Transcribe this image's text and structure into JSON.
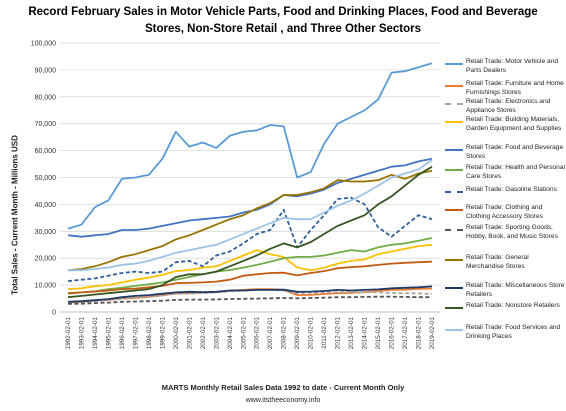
{
  "title_line1": "Record February Sales in Motor Vehicle Parts, Food and Drinking Places, Food and Beverage",
  "title_line2": "Stores, Non-Store Retail , and Three Other Sectors",
  "footer_line1": "MARTS Monthly Retail Sales Data 1992 to date - Current Month Only",
  "footer_line2": "www.itstheeconomy.info",
  "chart_data": {
    "type": "line",
    "ylabel": "Total Sales - Current Month - Millions USD",
    "xlabel": "",
    "ylim": [
      0,
      100000
    ],
    "y_ticks": [
      "0",
      "10,000",
      "20,000",
      "30,000",
      "40,000",
      "50,000",
      "60,000",
      "70,000",
      "80,000",
      "90,000",
      "100,000"
    ],
    "grid": "horizontal",
    "legend_position": "right",
    "categories": [
      "1992-02-01",
      "1993-02-01",
      "1994-02-01",
      "1995-02-01",
      "1996-02-01",
      "1997-02-01",
      "1998-02-01",
      "1999-02-01",
      "2000-02-01",
      "2001-02-01",
      "2002-02-01",
      "2003-02-01",
      "2004-02-01",
      "2005-02-01",
      "2006-02-01",
      "2007-02-01",
      "2008-02-01",
      "2009-02-01",
      "2010-02-01",
      "2011-02-01",
      "2012-02-01",
      "2013-02-01",
      "2014-02-01",
      "2015-02-01",
      "2016-02-01",
      "2017-02-01",
      "2018-02-01",
      "2019-02-01"
    ],
    "series": [
      {
        "name": "Retail Trade: Motor Vehicle and Parts Dealers",
        "color": "#5B9BD5",
        "dash": "solid",
        "values": [
          31000,
          32500,
          39000,
          41500,
          49500,
          50000,
          51000,
          57000,
          67000,
          61500,
          63000,
          61000,
          65500,
          67000,
          67500,
          69500,
          69000,
          50000,
          52000,
          62500,
          70000,
          72500,
          75000,
          79000,
          89000,
          89500,
          91000,
          92500
        ]
      },
      {
        "name": "Retail Trade: Furniture and Home Furnishings Stores",
        "color": "#ED7D31",
        "dash": "solid",
        "values": [
          3500,
          3800,
          4200,
          4500,
          5000,
          5200,
          5600,
          6200,
          6900,
          7000,
          7200,
          7400,
          7900,
          8200,
          8500,
          8500,
          8200,
          6300,
          6400,
          6700,
          7000,
          7100,
          7400,
          7800,
          8200,
          8300,
          8600,
          8700
        ]
      },
      {
        "name": "Retail Trade: Electronics and Appliance Stores",
        "color": "#A5A5A5",
        "dash": "dash",
        "values": [
          3500,
          3700,
          4000,
          4500,
          5000,
          5300,
          5700,
          6200,
          6800,
          6800,
          7000,
          7300,
          7700,
          8000,
          8300,
          8200,
          8000,
          7000,
          7200,
          7300,
          7400,
          7400,
          7400,
          7300,
          7100,
          7000,
          6900,
          6700
        ]
      },
      {
        "name": "Retail Trade: Building Materials, Garden Equipment and Supplies",
        "color": "#FFC000",
        "dash": "solid",
        "values": [
          8500,
          8800,
          9600,
          10000,
          11000,
          12000,
          12800,
          13800,
          15200,
          15600,
          16500,
          17000,
          19000,
          21000,
          23000,
          21500,
          20500,
          16500,
          15500,
          16500,
          18000,
          19000,
          19500,
          21500,
          22500,
          23500,
          24500,
          25000
        ]
      },
      {
        "name": "Retail Trade: Food and Beverage Stores",
        "color": "#4472C4",
        "dash": "solid",
        "values": [
          28500,
          28000,
          28500,
          29000,
          30500,
          30500,
          31000,
          32000,
          33000,
          34000,
          34500,
          35000,
          35500,
          37000,
          38000,
          40000,
          43500,
          43000,
          44000,
          45500,
          48000,
          49500,
          51000,
          52500,
          54000,
          54500,
          56000,
          57000
        ]
      },
      {
        "name": "Retail Trade: Health and Personal Care Stores",
        "color": "#70AD47",
        "dash": "solid",
        "values": [
          6800,
          7300,
          7700,
          8500,
          9000,
          9700,
          10300,
          11000,
          12000,
          13000,
          14000,
          15000,
          15600,
          16500,
          17500,
          18700,
          20000,
          20500,
          20500,
          21000,
          22000,
          23000,
          22500,
          24000,
          25000,
          25500,
          26500,
          27500
        ]
      },
      {
        "name": "Retail Trade: Gasoline Stations",
        "color": "#2E5E9A",
        "dash": "dash",
        "values": [
          11500,
          12000,
          12500,
          13500,
          14500,
          15000,
          14500,
          15000,
          18500,
          19000,
          17000,
          21000,
          22500,
          25500,
          29000,
          30500,
          38000,
          24000,
          30500,
          36000,
          42000,
          42500,
          40000,
          31500,
          28000,
          32000,
          36000,
          34500
        ]
      },
      {
        "name": "Retail Trade: Clothing and Clothing Accessory Stores",
        "color": "#C55A11",
        "dash": "solid",
        "values": [
          7000,
          7300,
          7600,
          8000,
          8500,
          8700,
          9200,
          9700,
          10700,
          10800,
          11000,
          11300,
          12000,
          13500,
          14000,
          14500,
          14600,
          13600,
          14500,
          15200,
          16300,
          16700,
          17000,
          17500,
          18000,
          18300,
          18500,
          18700
        ]
      },
      {
        "name": "Retail Trade: Sporting Goods, Hobby, Book, and Music Stores",
        "color": "#555555",
        "dash": "dash",
        "values": [
          3000,
          3100,
          3300,
          3500,
          3800,
          3900,
          4000,
          4200,
          4500,
          4600,
          4600,
          4700,
          4800,
          4900,
          5000,
          5100,
          5200,
          5100,
          5200,
          5300,
          5500,
          5500,
          5600,
          5700,
          5700,
          5600,
          5500,
          5500
        ]
      },
      {
        "name": "Retail Trade: General Merchandise Stores",
        "color": "#997300",
        "dash": "solid",
        "values": [
          15500,
          16000,
          17000,
          18500,
          20500,
          21500,
          23000,
          24500,
          27000,
          28500,
          30500,
          32500,
          34500,
          36000,
          38500,
          40500,
          43500,
          43500,
          44500,
          46000,
          49000,
          48500,
          48500,
          49000,
          51000,
          49500,
          51500,
          52500
        ]
      },
      {
        "name": "Retail Trade: Miscellaneous Store Retailers",
        "color": "#1F3864",
        "dash": "solid",
        "values": [
          3800,
          4000,
          4400,
          4800,
          5500,
          6000,
          6300,
          6800,
          7300,
          7500,
          7400,
          7500,
          8000,
          8000,
          8200,
          8200,
          8300,
          7500,
          7600,
          7800,
          8200,
          8000,
          8200,
          8400,
          8800,
          9000,
          9200,
          9500
        ]
      },
      {
        "name": "Retail Trade: Nonstore Retailers",
        "color": "#375623",
        "dash": "solid",
        "values": [
          5500,
          6000,
          6500,
          7000,
          7500,
          8000,
          8500,
          10000,
          13000,
          14000,
          14000,
          15000,
          17000,
          19000,
          21000,
          23500,
          25500,
          24000,
          26000,
          29000,
          32000,
          34000,
          36000,
          40000,
          43000,
          47000,
          51000,
          54000
        ]
      },
      {
        "name": "Retail Trade: Food Services and Drinking Places",
        "color": "#9DC3E6",
        "dash": "solid",
        "values": [
          15500,
          15500,
          16000,
          16500,
          17500,
          18000,
          19000,
          20500,
          22000,
          23000,
          24000,
          25000,
          27000,
          29000,
          31000,
          33000,
          35000,
          34500,
          34500,
          37000,
          39500,
          41500,
          44000,
          47000,
          50000,
          51500,
          53000,
          56500
        ]
      }
    ]
  }
}
